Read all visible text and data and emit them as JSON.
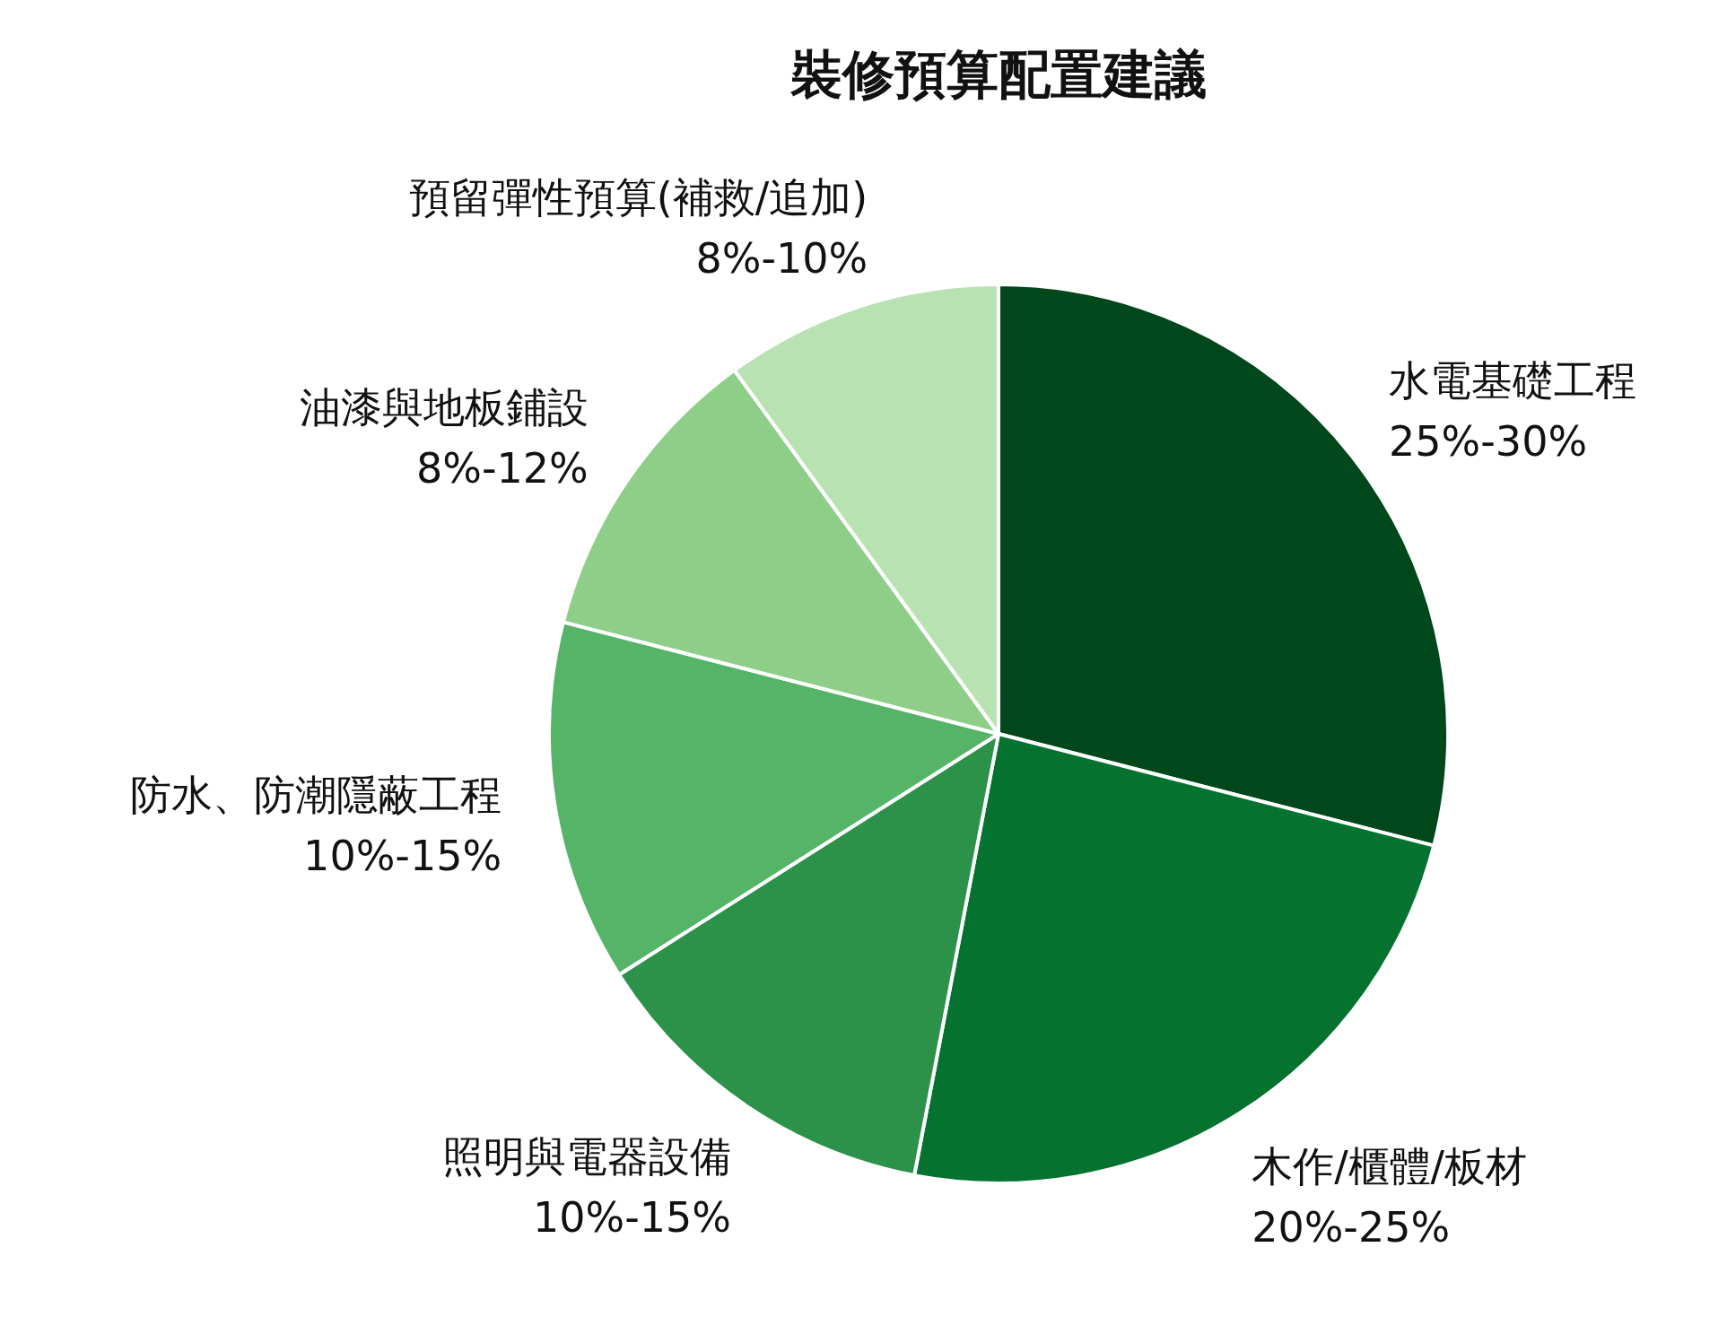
{
  "chart_data": {
    "type": "pie",
    "title": "裝修預算配置建議",
    "categories": [
      "水電基礎工程\n25%-30%",
      "木作/櫃體/板材\n20%-25%",
      "照明與電器設備\n10%-15%",
      "防水、防潮隱蔽工程\n10%-15%",
      "油漆與地板鋪設\n8%-12%",
      "預留彈性預算(補救/追加)\n8%-10%"
    ],
    "values": [
      29,
      24,
      13,
      13,
      11,
      10
    ],
    "colors": [
      "#00471b",
      "#06722f",
      "#2d9249",
      "#55b467",
      "#8ece88",
      "#b8e2b2"
    ]
  }
}
